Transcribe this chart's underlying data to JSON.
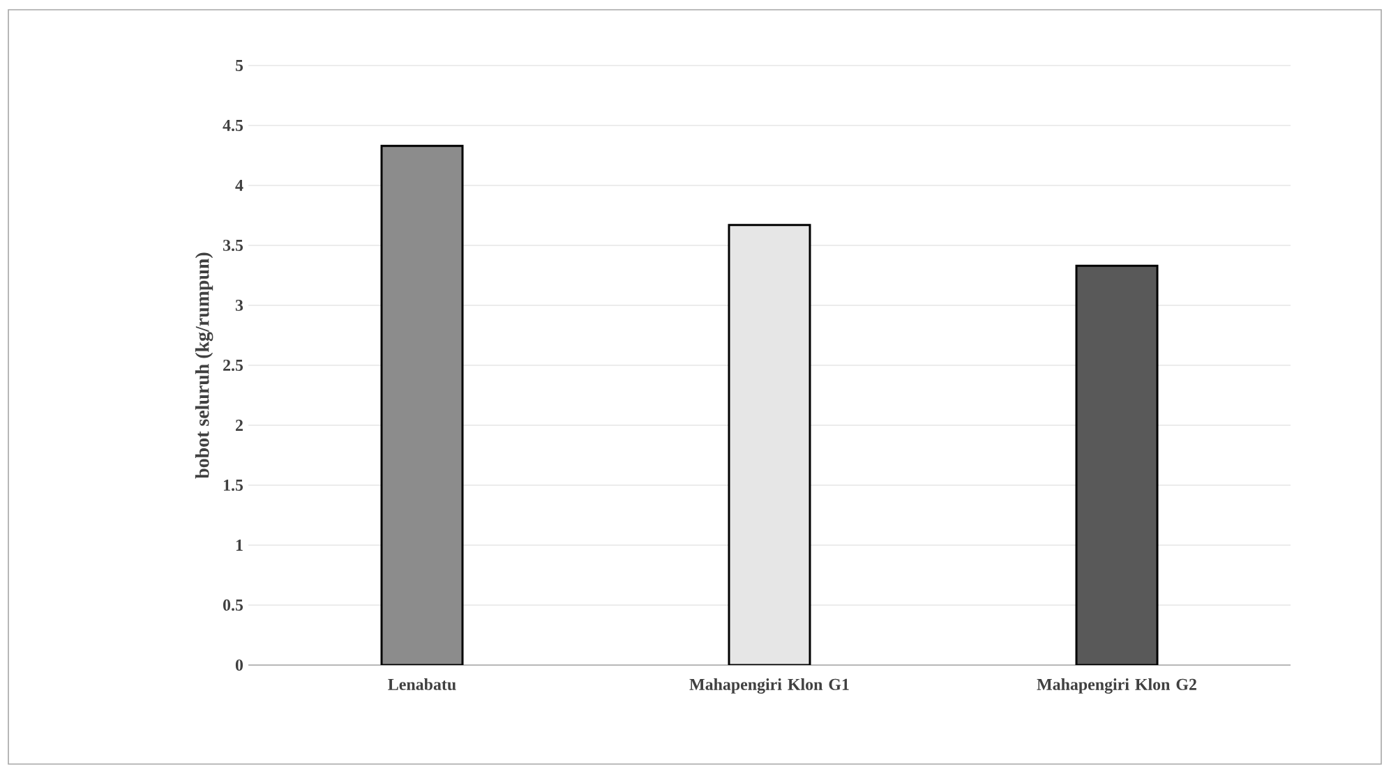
{
  "chart_data": {
    "type": "bar",
    "ylabel": "bobot seluruh  (kg/rumpun)",
    "categories": [
      "Lenabatu",
      "Mahapengiri Klon G1",
      "Mahapengiri Klon G2"
    ],
    "values": [
      4.33,
      3.67,
      3.33
    ],
    "colors": [
      "#8c8c8c",
      "#e6e6e6",
      "#595959"
    ],
    "ylim": [
      0,
      5
    ],
    "yticks": [
      0,
      0.5,
      1,
      1.5,
      2,
      2.5,
      3,
      3.5,
      4,
      4.5,
      5
    ],
    "grid": "y"
  }
}
